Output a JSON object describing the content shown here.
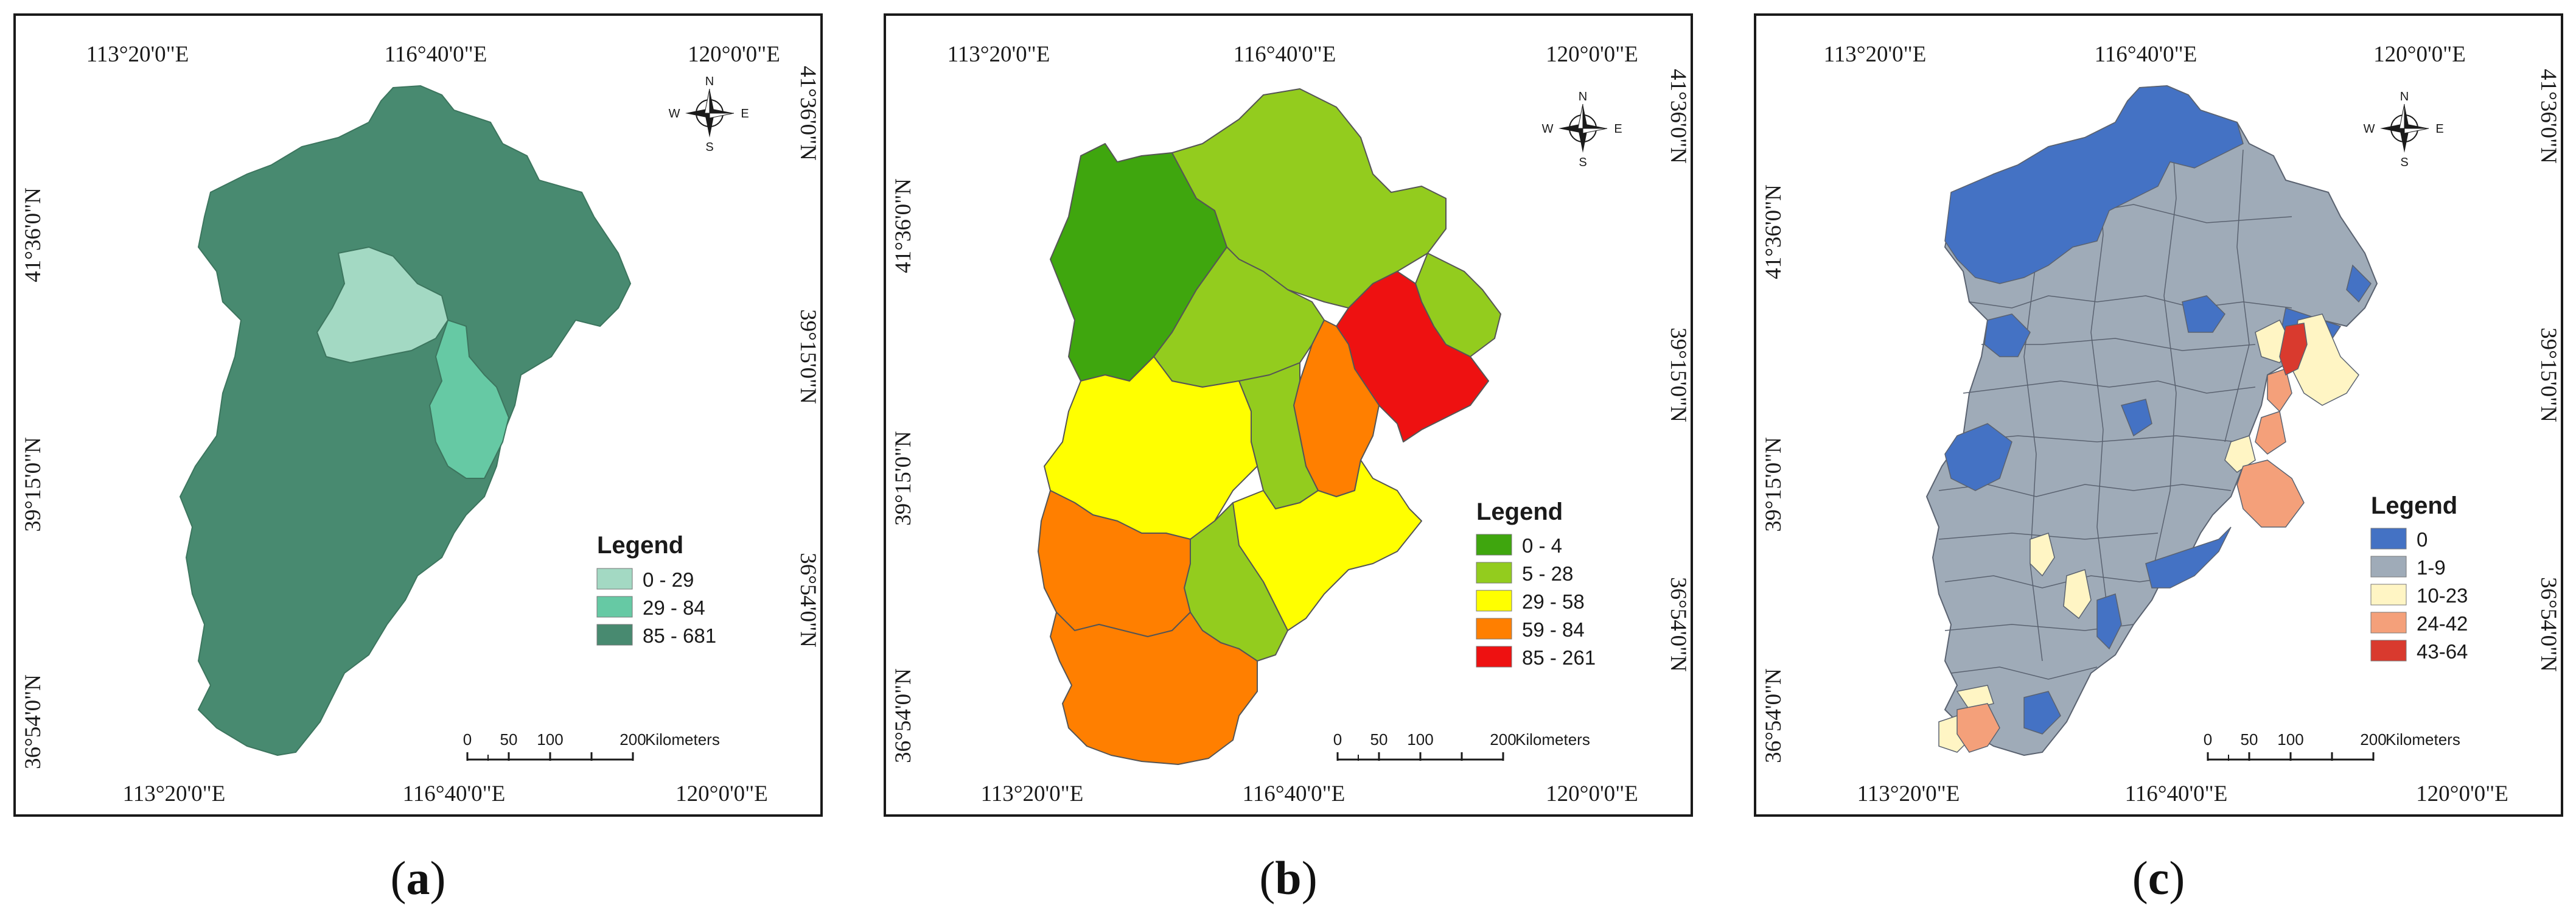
{
  "panels": [
    {
      "id": "a",
      "caption_letter": "a",
      "legend": {
        "title": "Legend",
        "classes": [
          {
            "label": "0 - 29",
            "color": "#a3d9c3"
          },
          {
            "label": "29 - 84",
            "color": "#66c9a4"
          },
          {
            "label": "85 - 681",
            "color": "#488a70"
          }
        ]
      }
    },
    {
      "id": "b",
      "caption_letter": "b",
      "legend": {
        "title": "Legend",
        "classes": [
          {
            "label": "0 - 4",
            "color": "#3fa60e"
          },
          {
            "label": "5 - 28",
            "color": "#93cc1e"
          },
          {
            "label": "29 - 58",
            "color": "#ffff00"
          },
          {
            "label": "59 - 84",
            "color": "#ff7f00"
          },
          {
            "label": "85 - 261",
            "color": "#ee1111"
          }
        ]
      }
    },
    {
      "id": "c",
      "caption_letter": "c",
      "legend": {
        "title": "Legend",
        "classes": [
          {
            "label": "0",
            "color": "#4472c4"
          },
          {
            "label": "1-9",
            "color": "#9fabb8"
          },
          {
            "label": "10-23",
            "color": "#fff5c4"
          },
          {
            "label": "24-42",
            "color": "#f4a07a"
          },
          {
            "label": "43-64",
            "color": "#d93a2e"
          }
        ]
      }
    }
  ],
  "axis_labels": {
    "lon": [
      "113°20'0\"E",
      "116°40'0\"E",
      "120°0'0\"E"
    ],
    "lat_left": [
      "41°36'0\"N",
      "39°15'0\"N",
      "36°54'0\"N"
    ],
    "lat_right": [
      "41°36'0\"N",
      "39°15'0\"N",
      "36°54'0\"N"
    ]
  },
  "compass": {
    "n": "N",
    "s": "S",
    "e": "E",
    "w": "W"
  },
  "scale_bar": {
    "ticks": [
      "0",
      "50",
      "100",
      "200"
    ],
    "unit": "Kilometers"
  },
  "region_colors": {
    "a": {
      "hebei": "#488a70",
      "beijing": "#a3d9c3",
      "tianjin": "#66c9a4"
    },
    "b": {
      "zhangjiakou": "#3fa60e",
      "chengde": "#93cc1e",
      "qinhuangdao": "#93cc1e",
      "tangshan": "#ee1111",
      "tianjin": "#ff7f00",
      "beijing": "#93cc1e",
      "langfang": "#93cc1e",
      "baoding": "#ffff00",
      "cangzhou": "#ffff00",
      "hengshui": "#93cc1e",
      "shijiazhuang": "#ff7f00",
      "xingtai_handan": "#ff7f00"
    },
    "c": {
      "base": "#9fabb8",
      "zero": "#4472c4",
      "low": "#fff5c4",
      "mid": "#f4a07a",
      "high": "#d93a2e",
      "border": "#5a6270"
    }
  }
}
